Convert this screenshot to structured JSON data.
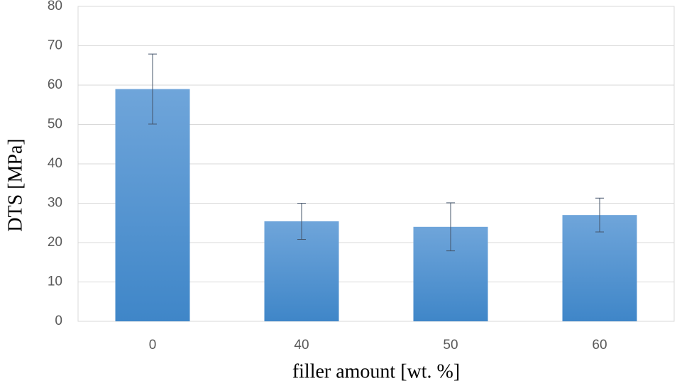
{
  "chart_data": {
    "type": "bar",
    "x_label": "filler amount [wt. %]",
    "y_label": "DTS [MPa]",
    "categories": [
      "0",
      "40",
      "50",
      "60"
    ],
    "values": [
      59,
      25.4,
      24,
      27
    ],
    "errors": [
      8.9,
      4.6,
      6.1,
      4.3
    ],
    "color": "#5b9bd5",
    "ylim": [
      0,
      80
    ],
    "yticks": [
      0,
      10,
      20,
      30,
      40,
      50,
      60,
      70,
      80
    ],
    "grid": true
  }
}
